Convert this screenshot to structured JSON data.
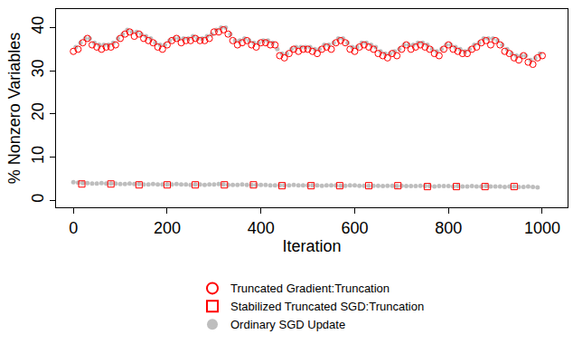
{
  "chart_data": {
    "type": "scatter",
    "x_label": "Iteration",
    "y_label": "% Nonzero Variables",
    "xlim": [
      -37,
      1054
    ],
    "xticks": [
      0,
      200,
      400,
      600,
      800,
      1000
    ],
    "ylim": [
      -1.6,
      44.3
    ],
    "yticks": [
      0,
      10,
      20,
      30,
      40
    ],
    "grid": false,
    "legend": "bottom",
    "series": [
      {
        "name": "Truncated Gradient:Truncation",
        "color": "#ff0000",
        "marker": "circle-open",
        "x": [
          0,
          10,
          20,
          30,
          40,
          50,
          60,
          70,
          80,
          90,
          100,
          110,
          120,
          130,
          140,
          150,
          160,
          170,
          180,
          190,
          200,
          210,
          220,
          230,
          240,
          250,
          260,
          270,
          280,
          290,
          300,
          310,
          320,
          330,
          340,
          350,
          360,
          370,
          380,
          390,
          400,
          410,
          420,
          430,
          440,
          450,
          460,
          470,
          480,
          490,
          500,
          510,
          520,
          530,
          540,
          550,
          560,
          570,
          580,
          590,
          600,
          610,
          620,
          630,
          640,
          650,
          660,
          670,
          680,
          690,
          700,
          710,
          720,
          730,
          740,
          750,
          760,
          770,
          780,
          790,
          800,
          810,
          820,
          830,
          840,
          850,
          860,
          870,
          880,
          890,
          900,
          910,
          920,
          930,
          940,
          950,
          960,
          970,
          980,
          990,
          1000
        ],
        "values": [
          34.5,
          35,
          36.5,
          37.5,
          36,
          35.5,
          35,
          35.5,
          35.5,
          36,
          37.5,
          38.5,
          39,
          38,
          38.5,
          37.5,
          37,
          36.5,
          35.5,
          35,
          36,
          37,
          37.5,
          36.5,
          37,
          37,
          37.5,
          37,
          37,
          37.5,
          39,
          39,
          39.5,
          38.5,
          37,
          36,
          36.5,
          37,
          36,
          35.5,
          36.5,
          36.5,
          36,
          36,
          33.5,
          33,
          34,
          35,
          34.5,
          35,
          35,
          34.5,
          34,
          35,
          35.5,
          35,
          36.5,
          37,
          36.5,
          35,
          34.5,
          35.5,
          36,
          35.5,
          35,
          34,
          33.5,
          33,
          34,
          33.5,
          35,
          36,
          35,
          35.5,
          36,
          35.5,
          35,
          34,
          33.5,
          35,
          36,
          35,
          34.5,
          34,
          34,
          35,
          35.5,
          36.5,
          37,
          36,
          37,
          36,
          34.5,
          34,
          33,
          32.5,
          33.5,
          32,
          31.5,
          33,
          33.5
        ]
      },
      {
        "name": "Stabilized Truncated SGD:Truncation",
        "color": "#ff0000",
        "marker": "square-open",
        "x": [
          18,
          80,
          140,
          200,
          260,
          322,
          384,
          445,
          507,
          568,
          630,
          692,
          755,
          817,
          878,
          940
        ],
        "values": [
          3.8,
          3.8,
          3.6,
          3.6,
          3.6,
          3.6,
          3.6,
          3.4,
          3.4,
          3.4,
          3.4,
          3.4,
          3.2,
          3.2,
          3.2,
          3.2
        ]
      },
      {
        "name": "Ordinary SGD Update",
        "color": "#bebebe",
        "marker": "circle",
        "x": [
          5,
          15,
          25,
          35,
          45,
          55,
          65,
          75,
          85,
          95,
          105,
          115,
          125,
          135,
          145,
          155,
          165,
          175,
          185,
          195,
          205,
          215,
          225,
          235,
          245,
          255,
          265,
          275,
          285,
          295,
          305,
          315,
          325,
          335,
          345,
          355,
          365,
          375,
          385,
          395,
          405,
          415,
          425,
          435,
          445,
          455,
          465,
          475,
          485,
          495,
          505,
          515,
          525,
          535,
          545,
          555,
          565,
          575,
          585,
          595,
          605,
          615,
          625,
          635,
          645,
          655,
          665,
          675,
          685,
          695,
          705,
          715,
          725,
          735,
          745,
          755,
          765,
          775,
          785,
          795,
          805,
          815,
          825,
          835,
          845,
          855,
          865,
          875,
          885,
          895,
          905,
          915,
          925,
          935,
          945,
          955,
          965,
          975,
          985,
          995,
          0,
          10,
          20,
          30,
          40,
          50,
          60,
          70,
          80,
          90,
          100,
          110,
          120,
          130,
          140,
          150,
          160,
          170,
          180,
          190,
          200,
          210,
          220,
          230,
          240,
          250,
          260,
          270,
          280,
          290,
          300,
          310,
          320,
          330,
          340,
          350,
          360,
          370,
          380,
          390,
          400,
          410,
          420,
          430,
          440,
          450,
          460,
          470,
          480,
          490,
          500,
          510,
          520,
          530,
          540,
          550,
          560,
          570,
          580,
          590,
          600,
          610,
          620,
          630,
          640,
          650,
          660,
          670,
          680,
          690,
          700,
          710,
          720,
          730,
          740,
          750,
          760,
          770,
          780,
          790,
          800,
          810,
          820,
          830,
          840,
          850,
          860,
          870,
          880,
          890,
          900,
          910,
          920,
          930,
          940,
          950,
          960,
          970,
          980,
          990
        ],
        "values": [
          35.5,
          36.5,
          37.5,
          37.5,
          36.5,
          36,
          36,
          36,
          36.5,
          37.5,
          38.5,
          39.5,
          39,
          39,
          38.5,
          38,
          37.5,
          36.5,
          36,
          36,
          37,
          37.5,
          37.5,
          37.5,
          37.5,
          38,
          37.5,
          37.5,
          38,
          38.5,
          39.5,
          40,
          40,
          38.5,
          37,
          37,
          37.5,
          37,
          36.5,
          36.5,
          37,
          37,
          36.5,
          35,
          34,
          34,
          35,
          35.5,
          35.5,
          35.5,
          35.5,
          35,
          35,
          36,
          36,
          36.5,
          37.5,
          37.5,
          36.5,
          35.5,
          35.5,
          36.5,
          36.5,
          36,
          35.5,
          34.5,
          34,
          34,
          34.5,
          35,
          36,
          36,
          36,
          36.5,
          36.5,
          36,
          35,
          34.5,
          35,
          36,
          36,
          35.5,
          35,
          34.5,
          35,
          36,
          36.5,
          37.5,
          37.5,
          37.5,
          37,
          36,
          35,
          34,
          33.5,
          33.5,
          33.5,
          32.5,
          33,
          34,
          4.2,
          4.1,
          4.0,
          4.0,
          3.9,
          3.9,
          4.0,
          3.9,
          3.9,
          3.9,
          3.8,
          3.8,
          3.9,
          3.8,
          3.8,
          3.7,
          3.7,
          3.8,
          3.7,
          3.7,
          3.7,
          3.7,
          3.8,
          3.7,
          3.7,
          3.6,
          3.7,
          3.7,
          3.6,
          3.7,
          3.7,
          3.8,
          3.7,
          3.6,
          3.6,
          3.6,
          3.7,
          3.6,
          3.6,
          3.6,
          3.6,
          3.6,
          3.5,
          3.5,
          3.5,
          3.5,
          3.5,
          3.6,
          3.5,
          3.5,
          3.5,
          3.5,
          3.5,
          3.4,
          3.5,
          3.5,
          3.5,
          3.4,
          3.4,
          3.5,
          3.5,
          3.4,
          3.4,
          3.4,
          3.4,
          3.4,
          3.3,
          3.4,
          3.4,
          3.3,
          3.4,
          3.3,
          3.3,
          3.3,
          3.4,
          3.3,
          3.3,
          3.2,
          3.3,
          3.3,
          3.3,
          3.2,
          3.3,
          3.2,
          3.2,
          3.3,
          3.2,
          3.2,
          3.3,
          3.2,
          3.2,
          3.2,
          3.1,
          3.2,
          3.2,
          3.1,
          3.1,
          3.2,
          3.1,
          3.0
        ]
      }
    ]
  }
}
